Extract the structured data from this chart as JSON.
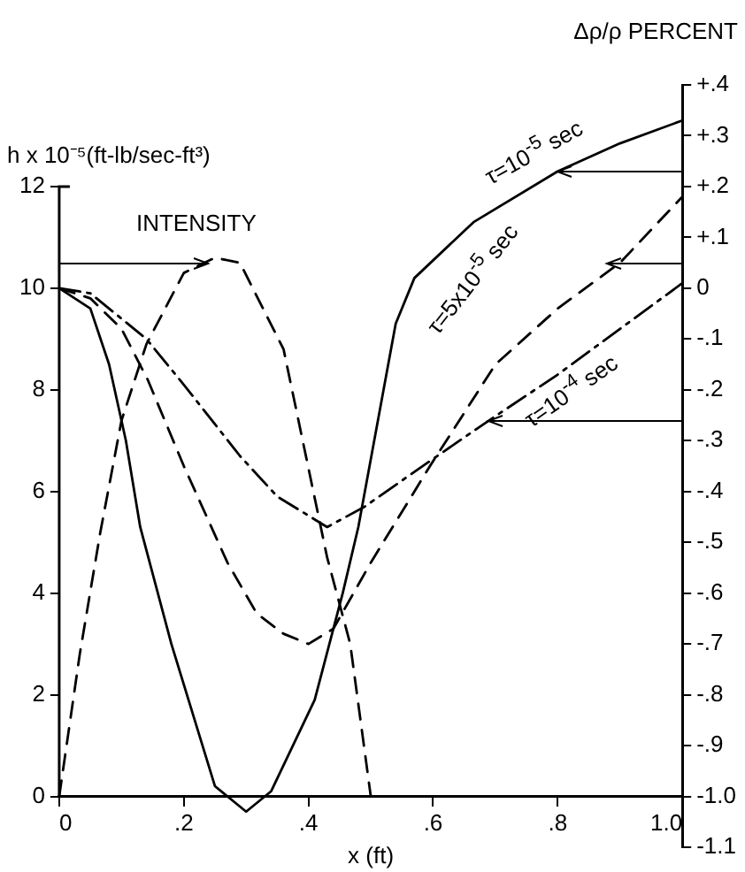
{
  "chart_data": {
    "type": "line",
    "ylabel": "h x 10⁻⁵(ft-lb/sec-ft³)",
    "y2label": "Δρ/ρ PERCENT",
    "xlabel": "x (ft)",
    "xlim": [
      0,
      1.0
    ],
    "xticks": [
      0,
      {
        "value": 0.2,
        "label": ".2"
      },
      {
        "value": 0.4,
        "label": ".4"
      },
      {
        "value": 0.6,
        "label": ".6"
      },
      {
        "value": 0.8,
        "label": ".8"
      },
      {
        "value": 1.0,
        "label": "1.0"
      }
    ],
    "ylim": [
      -1,
      14
    ],
    "yticks": [
      0,
      2,
      4,
      6,
      8,
      10,
      12
    ],
    "y2lim": [
      -1.1,
      0.4
    ],
    "y2ticks": [
      {
        "value": 0.4,
        "label": "+.4"
      },
      {
        "value": 0.3,
        "label": "+.3"
      },
      {
        "value": 0.2,
        "label": "+.2"
      },
      {
        "value": 0.1,
        "label": "+.1"
      },
      0,
      {
        "value": -0.1,
        "label": "-.1"
      },
      {
        "value": -0.2,
        "label": "-.2"
      },
      {
        "value": -0.3,
        "label": "-.3"
      },
      {
        "value": -0.4,
        "label": "-.4"
      },
      {
        "value": -0.5,
        "label": "-.5"
      },
      {
        "value": -0.6,
        "label": "-.6"
      },
      {
        "value": -0.7,
        "label": "-.7"
      },
      {
        "value": -0.8,
        "label": "-.8"
      },
      {
        "value": -0.9,
        "label": "-.9"
      },
      {
        "value": -1.0,
        "label": "-1.0"
      },
      {
        "value": -1.1,
        "label": "-1.1"
      }
    ],
    "marker": "none",
    "legend": false,
    "grid": false,
    "series": [
      {
        "color": "#000000",
        "line_style": "dashed",
        "x": [
          0,
          0.033,
          0.066,
          0.1,
          0.14,
          0.2,
          0.25,
          0.29,
          0.36,
          0.43,
          0.467,
          0.5
        ],
        "values": [
          0,
          2.8,
          5.2,
          7.4,
          8.9,
          10.3,
          10.6,
          10.5,
          8.8,
          4.7,
          3.0,
          0
        ]
      },
      {
        "color": "#000000",
        "line_style": "solid",
        "axis": "y2",
        "x": [
          0,
          0.05,
          0.08,
          0.107,
          0.13,
          0.18,
          0.25,
          0.3,
          0.34,
          0.41,
          0.455,
          0.48,
          0.54,
          0.57,
          0.665,
          0.8,
          0.9,
          1.0
        ],
        "values": [
          0,
          -0.04,
          -0.15,
          -0.3,
          -0.47,
          -0.7,
          -0.98,
          -1.03,
          -0.99,
          -0.81,
          -0.6,
          -0.47,
          -0.07,
          0.02,
          0.13,
          0.23,
          0.285,
          0.33
        ]
      },
      {
        "color": "#000000",
        "line_style": "dashed",
        "axis": "y2",
        "x": [
          0,
          0.05,
          0.1,
          0.142,
          0.2,
          0.27,
          0.317,
          0.36,
          0.4,
          0.44,
          0.5,
          0.595,
          0.7,
          0.8,
          0.9,
          1.0
        ],
        "values": [
          0,
          -0.02,
          -0.08,
          -0.18,
          -0.35,
          -0.54,
          -0.64,
          -0.68,
          -0.7,
          -0.67,
          -0.54,
          -0.35,
          -0.15,
          -0.04,
          0.05,
          0.18
        ]
      },
      {
        "color": "#000000",
        "line_style": "dotted",
        "axis": "y2",
        "x": [
          0,
          0.05,
          0.14,
          0.2,
          0.29,
          0.35,
          0.43,
          0.49,
          0.595,
          0.69,
          0.8,
          0.9,
          1.0
        ],
        "values": [
          0,
          -0.01,
          -0.1,
          -0.19,
          -0.33,
          -0.41,
          -0.47,
          -0.43,
          -0.34,
          -0.26,
          -0.17,
          -0.08,
          0.01
        ]
      }
    ],
    "annotations": [
      "INTENSITY",
      "τ=10$^{-5}$ sec",
      "τ=5x10$^{-5}$ sec",
      "τ=10$^{-4}$ sec"
    ]
  }
}
